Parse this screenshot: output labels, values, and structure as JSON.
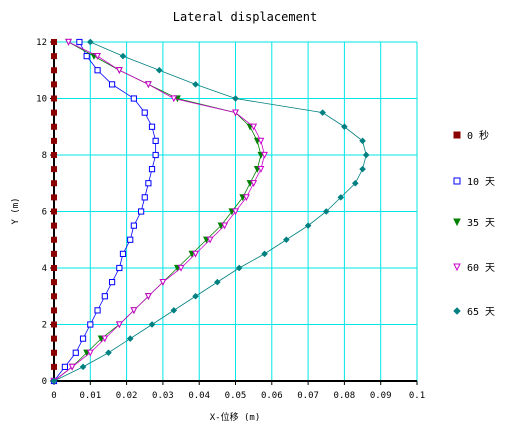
{
  "chart_data": {
    "type": "line",
    "title": "Lateral displacement",
    "xlabel": "X-位移 (m)",
    "ylabel": "Y (m)",
    "xlim": [
      0,
      0.1
    ],
    "ylim": [
      0,
      12
    ],
    "xticks": [
      "0",
      "0.01",
      "0.02",
      "0.03",
      "0.04",
      "0.05",
      "0.06",
      "0.07",
      "0.08",
      "0.09",
      "0.1"
    ],
    "yticks": [
      "0",
      "2",
      "4",
      "6",
      "8",
      "10",
      "12"
    ],
    "grid": true,
    "legend_position": "right",
    "series": [
      {
        "name": "0 秒",
        "color": "#8b0000",
        "marker": "square-filled",
        "points": [
          [
            0,
            0
          ],
          [
            0,
            0.5
          ],
          [
            0,
            1
          ],
          [
            0,
            1.5
          ],
          [
            0,
            2
          ],
          [
            0,
            2.5
          ],
          [
            0,
            3
          ],
          [
            0,
            3.5
          ],
          [
            0,
            4
          ],
          [
            0,
            4.5
          ],
          [
            0,
            5
          ],
          [
            0,
            5.5
          ],
          [
            0,
            6
          ],
          [
            0,
            6.5
          ],
          [
            0,
            7
          ],
          [
            0,
            7.5
          ],
          [
            0,
            8
          ],
          [
            0,
            8.5
          ],
          [
            0,
            9
          ],
          [
            0,
            9.5
          ],
          [
            0,
            10
          ],
          [
            0,
            10.5
          ],
          [
            0,
            11
          ],
          [
            0,
            11.5
          ],
          [
            0,
            12
          ]
        ]
      },
      {
        "name": "10 天",
        "color": "#0000ff",
        "marker": "square-open",
        "points": [
          [
            0,
            0
          ],
          [
            0.003,
            0.5
          ],
          [
            0.006,
            1
          ],
          [
            0.008,
            1.5
          ],
          [
            0.01,
            2
          ],
          [
            0.012,
            2.5
          ],
          [
            0.014,
            3
          ],
          [
            0.016,
            3.5
          ],
          [
            0.018,
            4
          ],
          [
            0.019,
            4.5
          ],
          [
            0.021,
            5
          ],
          [
            0.022,
            5.5
          ],
          [
            0.024,
            6
          ],
          [
            0.025,
            6.5
          ],
          [
            0.026,
            7
          ],
          [
            0.027,
            7.5
          ],
          [
            0.028,
            8
          ],
          [
            0.028,
            8.5
          ],
          [
            0.027,
            9
          ],
          [
            0.025,
            9.5
          ],
          [
            0.022,
            10
          ],
          [
            0.016,
            10.5
          ],
          [
            0.012,
            11
          ],
          [
            0.009,
            11.5
          ],
          [
            0.007,
            12
          ]
        ]
      },
      {
        "name": "35 天",
        "color": "#008000",
        "marker": "triangle-down-filled",
        "points": [
          [
            0,
            0
          ],
          [
            0.005,
            0.5
          ],
          [
            0.009,
            1
          ],
          [
            0.013,
            1.5
          ],
          [
            0.018,
            2
          ],
          [
            0.022,
            2.5
          ],
          [
            0.026,
            3
          ],
          [
            0.03,
            3.5
          ],
          [
            0.034,
            4
          ],
          [
            0.038,
            4.5
          ],
          [
            0.042,
            5
          ],
          [
            0.046,
            5.5
          ],
          [
            0.049,
            6
          ],
          [
            0.052,
            6.5
          ],
          [
            0.054,
            7
          ],
          [
            0.056,
            7.5
          ],
          [
            0.057,
            8
          ],
          [
            0.056,
            8.5
          ],
          [
            0.054,
            9
          ],
          [
            0.05,
            9.5
          ],
          [
            0.034,
            10
          ],
          [
            0.026,
            10.5
          ],
          [
            0.018,
            11
          ],
          [
            0.011,
            11.5
          ],
          [
            0.004,
            12
          ]
        ]
      },
      {
        "name": "60 天",
        "color": "#cc00cc",
        "marker": "triangle-down-open",
        "points": [
          [
            0,
            0
          ],
          [
            0.005,
            0.5
          ],
          [
            0.01,
            1
          ],
          [
            0.014,
            1.5
          ],
          [
            0.018,
            2
          ],
          [
            0.022,
            2.5
          ],
          [
            0.026,
            3
          ],
          [
            0.03,
            3.5
          ],
          [
            0.035,
            4
          ],
          [
            0.039,
            4.5
          ],
          [
            0.043,
            5
          ],
          [
            0.047,
            5.5
          ],
          [
            0.05,
            6
          ],
          [
            0.053,
            6.5
          ],
          [
            0.055,
            7
          ],
          [
            0.057,
            7.5
          ],
          [
            0.058,
            8
          ],
          [
            0.057,
            8.5
          ],
          [
            0.055,
            9
          ],
          [
            0.05,
            9.5
          ],
          [
            0.033,
            10
          ],
          [
            0.026,
            10.5
          ],
          [
            0.018,
            11
          ],
          [
            0.012,
            11.5
          ],
          [
            0.004,
            12
          ]
        ]
      },
      {
        "name": "65 天",
        "color": "#008080",
        "marker": "diamond-filled",
        "points": [
          [
            0,
            0
          ],
          [
            0.008,
            0.5
          ],
          [
            0.015,
            1
          ],
          [
            0.021,
            1.5
          ],
          [
            0.027,
            2
          ],
          [
            0.033,
            2.5
          ],
          [
            0.039,
            3
          ],
          [
            0.045,
            3.5
          ],
          [
            0.051,
            4
          ],
          [
            0.058,
            4.5
          ],
          [
            0.064,
            5
          ],
          [
            0.07,
            5.5
          ],
          [
            0.075,
            6
          ],
          [
            0.079,
            6.5
          ],
          [
            0.083,
            7
          ],
          [
            0.085,
            7.5
          ],
          [
            0.086,
            8
          ],
          [
            0.085,
            8.5
          ],
          [
            0.08,
            9
          ],
          [
            0.074,
            9.5
          ],
          [
            0.05,
            10
          ],
          [
            0.039,
            10.5
          ],
          [
            0.029,
            11
          ],
          [
            0.019,
            11.5
          ],
          [
            0.01,
            12
          ]
        ]
      }
    ]
  }
}
